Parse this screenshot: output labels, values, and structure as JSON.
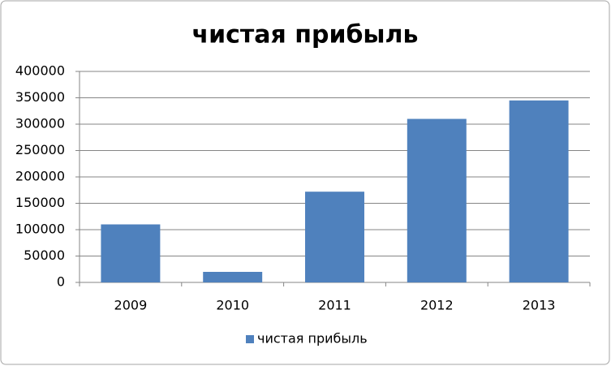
{
  "chart_data": {
    "type": "bar",
    "title": "чистая прибыль",
    "categories": [
      "2009",
      "2010",
      "2011",
      "2012",
      "2013"
    ],
    "series": [
      {
        "name": "чистая прибыль",
        "color": "#4f81bd",
        "values": [
          110000,
          20000,
          172000,
          310000,
          345000
        ]
      }
    ],
    "ylim": [
      0,
      400000
    ],
    "yticks": [
      0,
      50000,
      100000,
      150000,
      200000,
      250000,
      300000,
      350000,
      400000
    ],
    "grid": true,
    "legend": "bottom"
  }
}
